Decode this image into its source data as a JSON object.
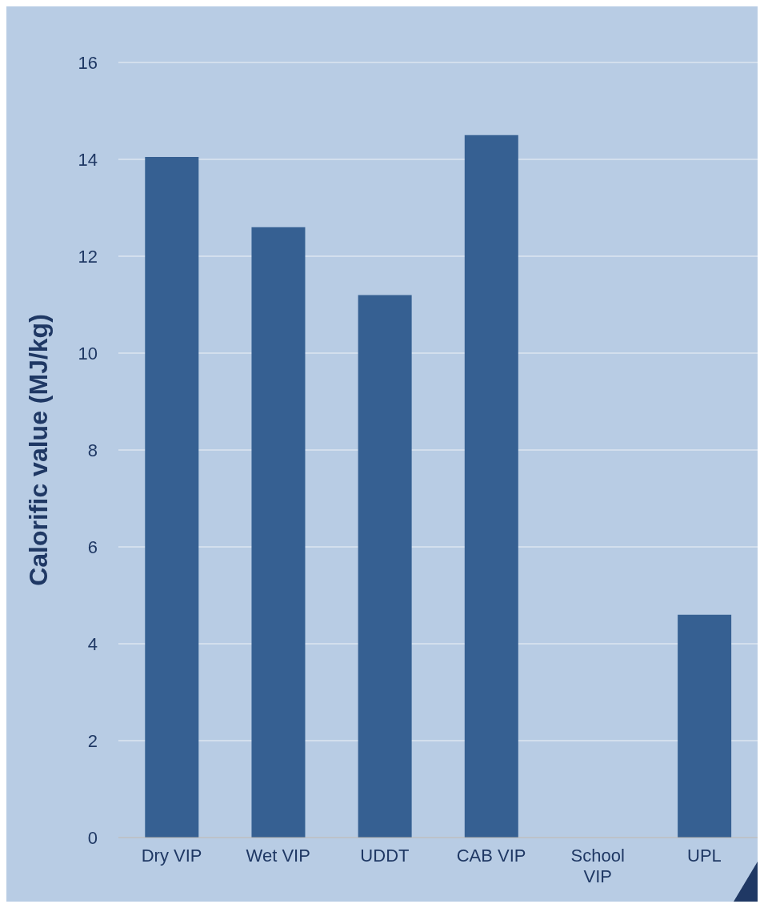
{
  "chart_data": {
    "type": "bar",
    "ylabel": "Calorific value (MJ/kg)",
    "categories": [
      "Dry VIP",
      "Wet VIP",
      "UDDT",
      "CAB VIP",
      "School VIP",
      "UPL"
    ],
    "values": [
      14.05,
      12.6,
      11.2,
      14.5,
      null,
      4.6
    ],
    "color": "#366092",
    "ylim": [
      0,
      16
    ],
    "yticks": [
      0,
      2,
      4,
      6,
      8,
      10,
      12,
      14,
      16
    ],
    "grid": "y"
  }
}
